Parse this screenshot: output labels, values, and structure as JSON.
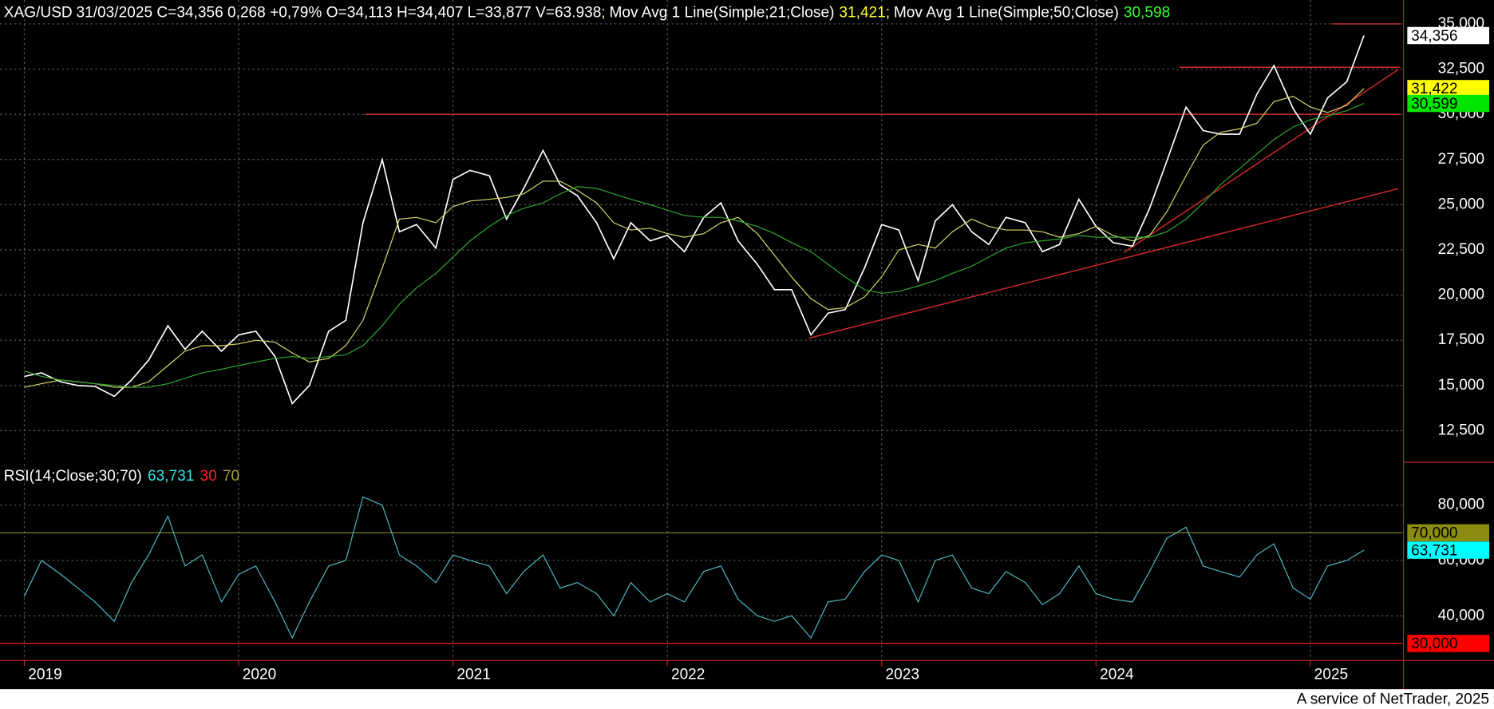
{
  "chart_data": {
    "type": "line",
    "title": "31/03/2025 C=34,356 0,268 +0,79% O=34,113 H=34,407 L=33,877 V=63.938",
    "separator": ";",
    "x": [
      2019.0,
      2019.08,
      2019.17,
      2019.25,
      2019.33,
      2019.42,
      2019.5,
      2019.58,
      2019.67,
      2019.75,
      2019.83,
      2019.92,
      2020.0,
      2020.08,
      2020.17,
      2020.25,
      2020.33,
      2020.42,
      2020.5,
      2020.58,
      2020.67,
      2020.75,
      2020.83,
      2020.92,
      2021.0,
      2021.08,
      2021.17,
      2021.25,
      2021.33,
      2021.42,
      2021.5,
      2021.58,
      2021.67,
      2021.75,
      2021.83,
      2021.92,
      2022.0,
      2022.08,
      2022.17,
      2022.25,
      2022.33,
      2022.42,
      2022.5,
      2022.58,
      2022.67,
      2022.75,
      2022.83,
      2022.92,
      2023.0,
      2023.08,
      2023.17,
      2023.25,
      2023.33,
      2023.42,
      2023.5,
      2023.58,
      2023.67,
      2023.75,
      2023.83,
      2023.92,
      2024.0,
      2024.08,
      2024.17,
      2024.25,
      2024.33,
      2024.42,
      2024.5,
      2024.58,
      2024.67,
      2024.75,
      2024.83,
      2024.92,
      2025.0,
      2025.08,
      2025.17,
      2025.25
    ],
    "xlim": [
      2018.9,
      2025.43
    ],
    "xticks": [
      2019,
      2020,
      2021,
      2022,
      2023,
      2024,
      2025
    ],
    "ylim": [
      10750,
      35900
    ],
    "yticks": [
      {
        "value": 12500,
        "label": "12,500"
      },
      {
        "value": 15000,
        "label": "15,000"
      },
      {
        "value": 17500,
        "label": "17,500"
      },
      {
        "value": 20000,
        "label": "20,000"
      },
      {
        "value": 22500,
        "label": "22,500"
      },
      {
        "value": 25000,
        "label": "25,000"
      },
      {
        "value": 27500,
        "label": "27,500"
      },
      {
        "value": 30000,
        "label": "30,000"
      },
      {
        "value": 32500,
        "label": "32,500"
      },
      {
        "value": 35000,
        "label": "35,000"
      }
    ],
    "y2lim": [
      23.8,
      94.8
    ],
    "y2ticks": [
      {
        "value": 40,
        "label": "40,000"
      },
      {
        "value": 60,
        "label": "60,000"
      },
      {
        "value": 80,
        "label": "80,000"
      }
    ],
    "grid": true,
    "series": [
      {
        "name": "XAG/USD",
        "color": "#ffffff",
        "tag": {
          "value": 34356,
          "label": "34,356",
          "color": "#ffffff"
        },
        "values": [
          15500,
          15700,
          15200,
          15000,
          14950,
          14400,
          15300,
          16400,
          18300,
          17000,
          18000,
          16900,
          17800,
          18000,
          16600,
          14000,
          15000,
          18000,
          18600,
          24000,
          27500,
          23500,
          23900,
          22600,
          26400,
          26900,
          26600,
          24200,
          25900,
          28000,
          26100,
          25500,
          24000,
          22000,
          24000,
          23000,
          23300,
          22400,
          24300,
          25100,
          23000,
          21700,
          20300,
          20300,
          17800,
          19000,
          19200,
          21500,
          23900,
          23600,
          20800,
          24100,
          25000,
          23500,
          22800,
          24300,
          24000,
          22400,
          22800,
          25300,
          23800,
          22900,
          22700,
          24800,
          27400,
          30400,
          29100,
          28900,
          28900,
          31100,
          32700,
          30300,
          28900,
          30900,
          31800,
          34356
        ]
      },
      {
        "name": "Mov Avg 1 Line(Simple;21;Close)",
        "color": "#d8d86a",
        "value_label": "31,421",
        "label_color": "#ffff33",
        "tag": {
          "value": 31422,
          "label": "31,422",
          "color": "#ffff00"
        },
        "values": [
          14900,
          15100,
          15300,
          15200,
          15100,
          14900,
          14900,
          15200,
          16100,
          16900,
          17200,
          17200,
          17300,
          17500,
          17400,
          16800,
          16300,
          16500,
          17200,
          18600,
          21500,
          24200,
          24300,
          24000,
          24900,
          25200,
          25300,
          25400,
          25600,
          26300,
          26300,
          25800,
          25100,
          24000,
          23600,
          23700,
          23400,
          23200,
          23400,
          24000,
          24300,
          23400,
          22200,
          21000,
          19800,
          19200,
          19300,
          19900,
          21000,
          22500,
          22800,
          22600,
          23500,
          24200,
          23800,
          23600,
          23600,
          23500,
          23200,
          23400,
          23800,
          23300,
          23000,
          23300,
          24600,
          26600,
          28300,
          29000,
          29200,
          29500,
          30700,
          31000,
          30400,
          30100,
          30500,
          31421
        ]
      },
      {
        "name": "Mov Avg 1 Line(Simple;50;Close)",
        "color": "#2fa82f",
        "value_label": "30,598",
        "label_color": "#33ff33",
        "tag": {
          "value": 30599,
          "label": "30,599",
          "color": "#00e600"
        },
        "values": [
          15800,
          15500,
          15300,
          15200,
          15100,
          15000,
          14900,
          14900,
          15100,
          15400,
          15700,
          15900,
          16100,
          16300,
          16500,
          16600,
          16500,
          16600,
          16700,
          17200,
          18300,
          19500,
          20400,
          21200,
          22100,
          23000,
          23800,
          24400,
          24800,
          25100,
          25600,
          26000,
          25900,
          25600,
          25300,
          25000,
          24700,
          24400,
          24300,
          24300,
          24100,
          23800,
          23400,
          22900,
          22400,
          21700,
          21000,
          20300,
          20100,
          20200,
          20500,
          20800,
          21200,
          21600,
          22100,
          22600,
          22900,
          23000,
          23100,
          23300,
          23200,
          23200,
          23200,
          23200,
          23500,
          24200,
          25100,
          26100,
          27000,
          27800,
          28600,
          29300,
          29700,
          29900,
          30200,
          30598
        ]
      },
      {
        "name": "RSI(14;Close;30;70)",
        "color": "#4fb8c0",
        "axis": "y2",
        "value_label": "63,731",
        "label_color": "#33e0e0",
        "tag": {
          "value": 63.731,
          "label": "63,731",
          "color": "#00ffff"
        },
        "values": [
          47,
          60,
          55,
          50,
          45,
          38,
          52,
          62,
          76,
          58,
          62,
          45,
          55,
          58,
          45,
          32,
          45,
          58,
          60,
          83,
          80,
          62,
          58,
          52,
          62,
          60,
          58,
          48,
          56,
          62,
          50,
          52,
          48,
          40,
          52,
          45,
          48,
          45,
          56,
          58,
          46,
          40,
          38,
          40,
          32,
          45,
          46,
          56,
          62,
          60,
          45,
          60,
          62,
          50,
          48,
          56,
          52,
          44,
          48,
          58,
          48,
          46,
          45,
          56,
          68,
          72,
          58,
          56,
          54,
          62,
          66,
          50,
          46,
          58,
          60,
          63.731
        ]
      }
    ],
    "y2_levels": [
      {
        "value": 30,
        "label": "30",
        "tag_label": "30,000",
        "color": "#ff2020",
        "tag_color": "#ff0000"
      },
      {
        "value": 70,
        "label": "70",
        "tag_label": "70,000",
        "color": "#8a8a30",
        "tag_color": "#8c8c10"
      }
    ],
    "lines": [
      {
        "x": [
          2020.59,
          2025.42
        ],
        "y": [
          30000,
          30000
        ],
        "color": "#d42a2a"
      },
      {
        "x": [
          2024.39,
          2025.42
        ],
        "y": [
          32600,
          32600
        ],
        "color": "#d42a2a"
      },
      {
        "x": [
          2025.1,
          2025.42
        ],
        "y": [
          35000,
          35000
        ],
        "color": "#d42a2a"
      },
      {
        "x": [
          2022.66,
          2025.41
        ],
        "y": [
          17613,
          25885
        ],
        "color": "#d42a2a"
      },
      {
        "x": [
          2024.13,
          2025.41
        ],
        "y": [
          22355,
          32471
        ],
        "color": "#d42a2a"
      }
    ],
    "footer": "A service of NetTrader, 2025"
  }
}
